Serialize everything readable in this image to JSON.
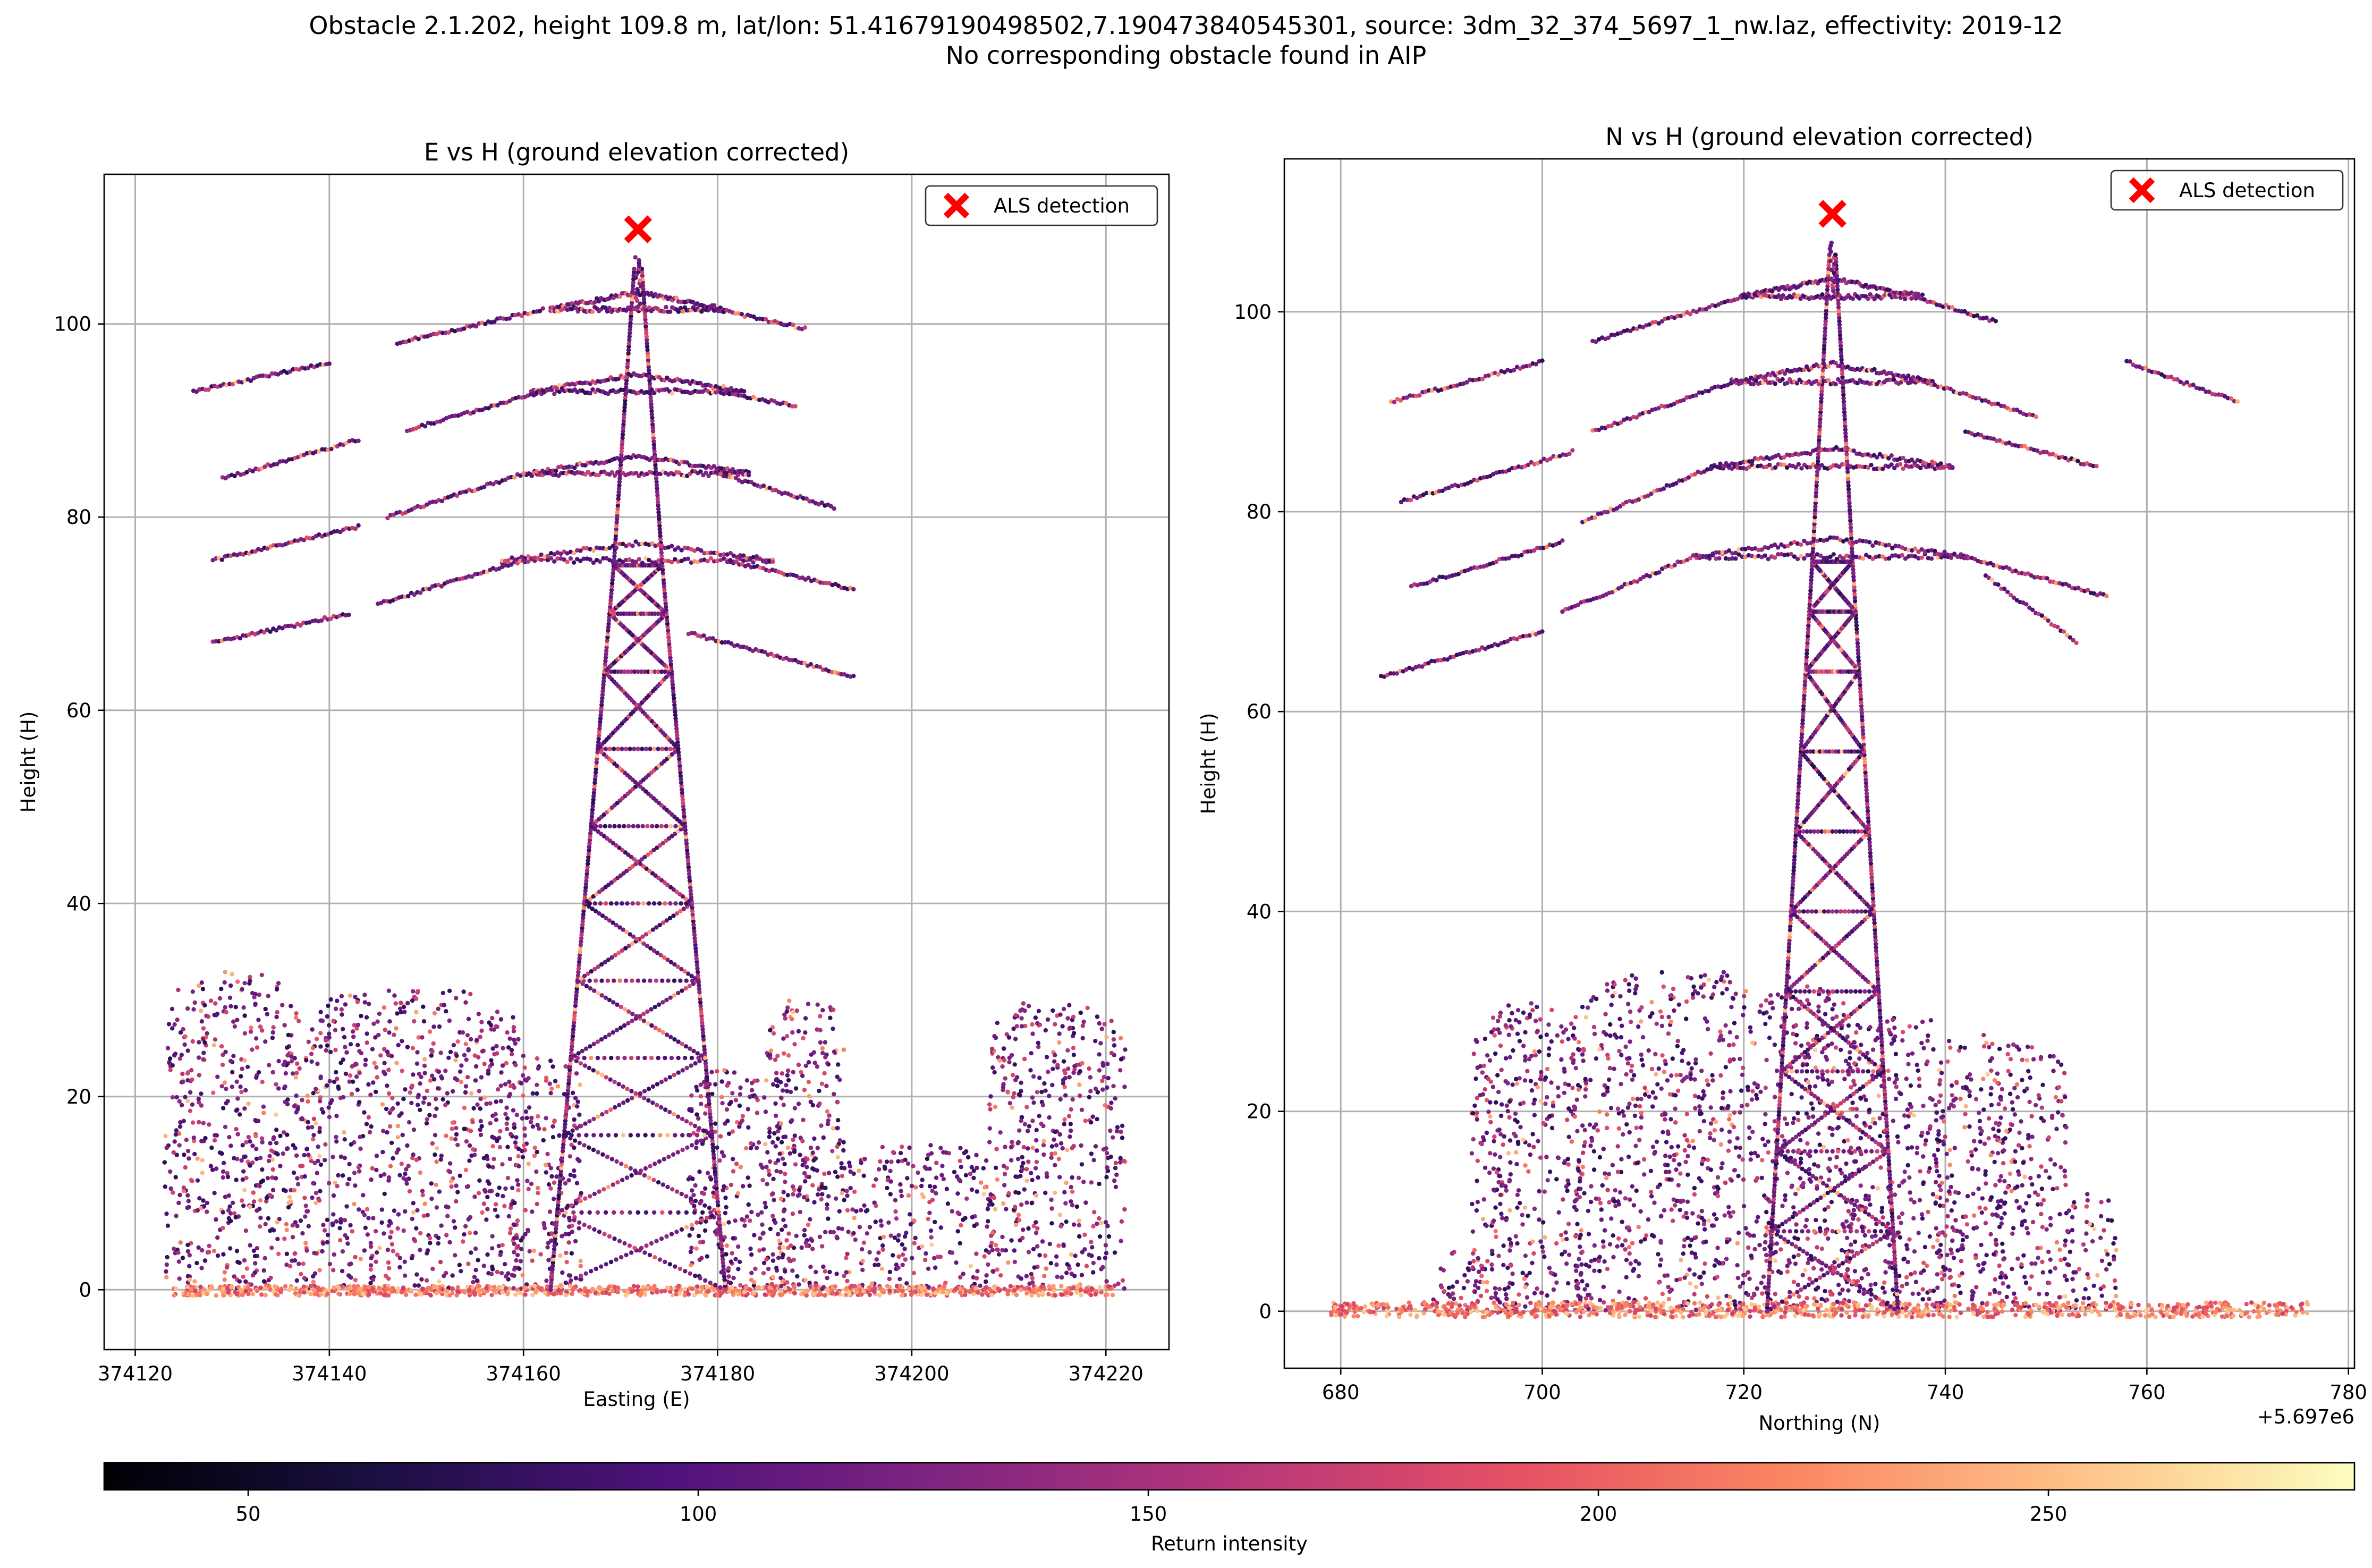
{
  "figure": {
    "title_line1": "Obstacle 2.1.202, height 109.8 m, lat/lon: 51.41679190498502,7.190473840545301, source: 3dm_32_374_5697_1_nw.laz, effectivity: 2019-12",
    "title_line2": "No corresponding obstacle found in AIP"
  },
  "chart_data": [
    {
      "type": "scatter",
      "title": "E vs H (ground elevation corrected)",
      "xlabel": "Easting (E)",
      "ylabel": "Height (H)",
      "xlim": [
        374116.8,
        374226.5
      ],
      "ylim": [
        -6.2,
        115.5
      ],
      "xticks": [
        374120,
        374140,
        374160,
        374180,
        374200,
        374220
      ],
      "xtick_labels": [
        "374120",
        "374140",
        "374160",
        "374180",
        "374200",
        "374220"
      ],
      "yticks": [
        0,
        20,
        40,
        60,
        80,
        100
      ],
      "ytick_labels": [
        "0",
        "20",
        "40",
        "60",
        "80",
        "100"
      ],
      "grid": true,
      "legend": {
        "position": "top-right",
        "entries": [
          "ALS detection"
        ]
      },
      "detection": {
        "x": 374171.8,
        "y": 109.8,
        "marker": "x",
        "color": "#ff0000",
        "name": "ALS detection"
      },
      "tower": {
        "center_x": 374171.8,
        "base_half_width": 9,
        "waist_half_width": 2.5,
        "waist_y": 75,
        "top_y": 106,
        "arms": [
          {
            "y": 101.5,
            "half_width": 9
          },
          {
            "y": 93,
            "half_width": 11
          },
          {
            "y": 84.5,
            "half_width": 11.5
          },
          {
            "y": 75.5,
            "half_width": 14
          }
        ]
      },
      "conductors": [
        {
          "x": [
            374126,
            374140
          ],
          "y": [
            93,
            96
          ]
        },
        {
          "x": [
            374147,
            374162
          ],
          "y": [
            98,
            101.5
          ]
        },
        {
          "x": [
            374129,
            374143
          ],
          "y": [
            84,
            88
          ]
        },
        {
          "x": [
            374148,
            374162
          ],
          "y": [
            89,
            93
          ]
        },
        {
          "x": [
            374128,
            374143
          ],
          "y": [
            75.5,
            79
          ]
        },
        {
          "x": [
            374146,
            374160
          ],
          "y": [
            80,
            84.5
          ]
        },
        {
          "x": [
            374128,
            374142
          ],
          "y": [
            67,
            70
          ]
        },
        {
          "x": [
            374145,
            374160
          ],
          "y": [
            71,
            75.5
          ]
        },
        {
          "x": [
            374180,
            374189
          ],
          "y": [
            101.5,
            99.5
          ]
        },
        {
          "x": [
            374180,
            374188
          ],
          "y": [
            93,
            91.5
          ]
        },
        {
          "x": [
            374180,
            374192
          ],
          "y": [
            84.5,
            81
          ]
        },
        {
          "x": [
            374181,
            374194
          ],
          "y": [
            75.5,
            72.5
          ]
        },
        {
          "x": [
            374177,
            374194
          ],
          "y": [
            68,
            63.5
          ]
        }
      ],
      "vegetation": [
        {
          "x": [
            374123,
            374137
          ],
          "y": [
            0,
            33
          ]
        },
        {
          "x": [
            374137,
            374160
          ],
          "y": [
            0,
            31
          ]
        },
        {
          "x": [
            374159,
            374166
          ],
          "y": [
            0,
            24
          ]
        },
        {
          "x": [
            374177,
            374188
          ],
          "y": [
            0,
            23
          ]
        },
        {
          "x": [
            374185,
            374193
          ],
          "y": [
            0,
            30
          ]
        },
        {
          "x": [
            374193,
            374208
          ],
          "y": [
            0,
            15
          ]
        },
        {
          "x": [
            374208,
            374222
          ],
          "y": [
            0,
            30
          ]
        }
      ],
      "ground": {
        "x": [
          374124,
          374221
        ],
        "y": [
          0,
          1
        ]
      }
    },
    {
      "type": "scatter",
      "title": "N vs H (ground elevation corrected)",
      "xlabel": "Northing (N)",
      "ylabel": "Height (H)",
      "x_offset_label": "+5.697e6",
      "xlim": [
        674.4,
        780.6
      ],
      "ylim": [
        -5.7,
        115.3
      ],
      "xticks": [
        680,
        700,
        720,
        740,
        760,
        780
      ],
      "xtick_labels": [
        "680",
        "700",
        "720",
        "740",
        "760",
        "780"
      ],
      "yticks": [
        0,
        20,
        40,
        60,
        80,
        100
      ],
      "ytick_labels": [
        "0",
        "20",
        "40",
        "60",
        "80",
        "100"
      ],
      "grid": true,
      "legend": {
        "position": "top-right",
        "entries": [
          "ALS detection"
        ]
      },
      "detection": {
        "x": 728.8,
        "y": 109.8,
        "marker": "x",
        "color": "#ff0000",
        "name": "ALS detection"
      },
      "tower": {
        "center_x": 728.8,
        "base_half_width": 6.5,
        "waist_half_width": 2,
        "waist_y": 75,
        "top_y": 106,
        "arms": [
          {
            "y": 101.5,
            "half_width": 9
          },
          {
            "y": 93,
            "half_width": 10
          },
          {
            "y": 84.5,
            "half_width": 12
          },
          {
            "y": 75.5,
            "half_width": 13.5
          }
        ]
      },
      "conductors": [
        {
          "x": [
            685,
            700
          ],
          "y": [
            91,
            95
          ]
        },
        {
          "x": [
            705,
            720
          ],
          "y": [
            97,
            101.5
          ]
        },
        {
          "x": [
            686,
            703
          ],
          "y": [
            81,
            86
          ]
        },
        {
          "x": [
            705,
            719
          ],
          "y": [
            88,
            93
          ]
        },
        {
          "x": [
            687,
            702
          ],
          "y": [
            72.5,
            77
          ]
        },
        {
          "x": [
            704,
            717
          ],
          "y": [
            79,
            84.5
          ]
        },
        {
          "x": [
            684,
            700
          ],
          "y": [
            63.5,
            68
          ]
        },
        {
          "x": [
            702,
            715
          ],
          "y": [
            70,
            75.5
          ]
        },
        {
          "x": [
            737,
            745
          ],
          "y": [
            101.5,
            99
          ]
        },
        {
          "x": [
            758,
            769
          ],
          "y": [
            95,
            91
          ]
        },
        {
          "x": [
            738,
            749
          ],
          "y": [
            93,
            89.5
          ]
        },
        {
          "x": [
            742,
            755
          ],
          "y": [
            88,
            84.5
          ]
        },
        {
          "x": [
            742,
            756
          ],
          "y": [
            75.5,
            71.5
          ]
        },
        {
          "x": [
            744,
            753
          ],
          "y": [
            73.5,
            67
          ]
        }
      ],
      "vegetation": [
        {
          "x": [
            689,
            698
          ],
          "y": [
            0,
            6
          ]
        },
        {
          "x": [
            693,
            704
          ],
          "y": [
            0,
            31
          ]
        },
        {
          "x": [
            703,
            731
          ],
          "y": [
            0,
            34
          ]
        },
        {
          "x": [
            730,
            740
          ],
          "y": [
            0,
            30
          ]
        },
        {
          "x": [
            739,
            746
          ],
          "y": [
            0,
            28
          ]
        },
        {
          "x": [
            745,
            752
          ],
          "y": [
            0,
            27
          ]
        },
        {
          "x": [
            752,
            757
          ],
          "y": [
            0,
            12
          ]
        }
      ],
      "ground": {
        "x": [
          679,
          776
        ],
        "y": [
          0,
          1.5
        ]
      }
    }
  ],
  "colorbar": {
    "label": "Return intensity",
    "range": [
      34,
      284
    ],
    "ticks": [
      50,
      100,
      150,
      200,
      250
    ],
    "tick_labels": [
      "50",
      "100",
      "150",
      "200",
      "250"
    ],
    "colormap": "magma",
    "colors": [
      "#000004",
      "#1c1044",
      "#4f127b",
      "#812581",
      "#b5367a",
      "#e55064",
      "#fb8761",
      "#fec287",
      "#fcfdbf"
    ]
  }
}
